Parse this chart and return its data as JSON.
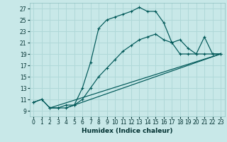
{
  "xlabel": "Humidex (Indice chaleur)",
  "bg_color": "#c8e8e8",
  "grid_color": "#b0d8d8",
  "line_color": "#005858",
  "xlim": [
    -0.5,
    23.5
  ],
  "ylim": [
    8.0,
    28.0
  ],
  "yticks": [
    9,
    11,
    13,
    15,
    17,
    19,
    21,
    23,
    25,
    27
  ],
  "xticks": [
    0,
    1,
    2,
    3,
    4,
    5,
    6,
    7,
    8,
    9,
    10,
    11,
    12,
    13,
    14,
    15,
    16,
    17,
    18,
    19,
    20,
    21,
    22,
    23
  ],
  "line1_x": [
    0,
    1,
    2,
    3,
    4,
    5,
    6,
    7,
    8,
    9,
    10,
    11,
    12,
    13,
    14,
    15,
    16,
    17,
    18,
    19,
    20,
    21,
    22,
    23
  ],
  "line1_y": [
    10.5,
    11.0,
    9.5,
    9.5,
    9.5,
    10.0,
    13.0,
    17.5,
    23.5,
    25.0,
    25.5,
    26.0,
    26.5,
    27.2,
    26.5,
    26.5,
    24.5,
    21.0,
    21.5,
    20.0,
    19.0,
    22.0,
    19.0,
    19.0
  ],
  "line2_x": [
    0,
    1,
    2,
    3,
    4,
    5,
    6,
    7,
    8,
    9,
    10,
    11,
    12,
    13,
    14,
    15,
    16,
    17,
    18,
    19,
    20,
    21,
    22,
    23
  ],
  "line2_y": [
    10.5,
    11.0,
    9.5,
    9.5,
    10.0,
    10.0,
    11.0,
    13.0,
    15.0,
    16.5,
    18.0,
    19.5,
    20.5,
    21.5,
    22.0,
    22.5,
    21.5,
    21.0,
    19.0,
    19.0,
    19.0,
    19.0,
    19.0,
    19.0
  ],
  "line3_x": [
    2,
    23
  ],
  "line3_y": [
    9.5,
    19.0
  ],
  "line4_x": [
    4,
    23
  ],
  "line4_y": [
    9.5,
    19.0
  ]
}
